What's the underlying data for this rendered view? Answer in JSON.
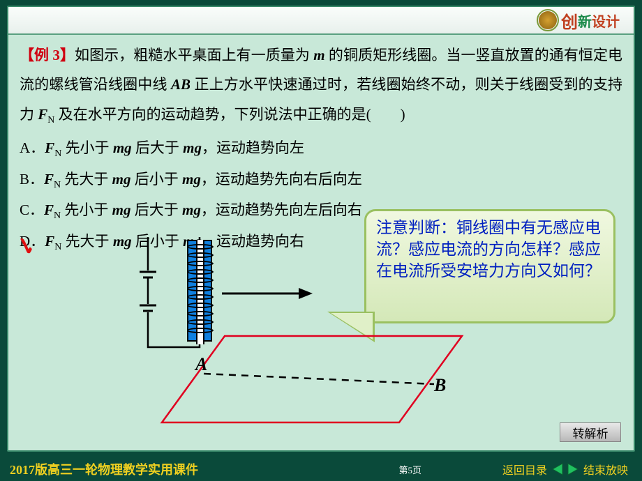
{
  "brand": {
    "chuang": "创",
    "xin": "新",
    "sheji": "设计"
  },
  "example_label": "【例 3】",
  "question": {
    "l1a": "如图示，粗糙水平桌面上有一质量为 ",
    "l1b": " 的铜质矩形线圈。当一竖直放置的通有恒定电流的螺线管沿线圈中线 ",
    "l1c": " 正上方水平快速通过时，若线圈始终不动，则关于线圈受到的支持力 ",
    "l1d": " 及在水平方向的运动趋势，下列说法中正确的是(　　)",
    "m": "m",
    "ab": "AB",
    "fn_f": "F",
    "fn_n": "N"
  },
  "options": {
    "A": {
      "letter": "A．",
      "t1": " 先小于 ",
      "t2": " 后大于 ",
      "t3": "，运动趋势向左"
    },
    "B": {
      "letter": "B．",
      "t1": " 先大于 ",
      "t2": " 后小于 ",
      "t3": "，运动趋势先向右后向左"
    },
    "C": {
      "letter": "C．",
      "t1": " 先小于 ",
      "t2": " 后大于 ",
      "t3": "，运动趋势先向左后向右"
    },
    "D": {
      "letter": "D．",
      "t1": " 先大于 ",
      "t2": " 后小于 ",
      "t3": "，运动趋势向右"
    },
    "fn_f": "F",
    "fn_n": "N",
    "mg": "mg"
  },
  "correct": "D",
  "callout_text": "注意判断：铜线圈中有无感应电流？感应电流的方向怎样？感应在电流所受安培力方向又如何？",
  "diagram": {
    "label_a": "A",
    "label_b": "B",
    "solenoid_color": "#1080e0",
    "coil_count": 11,
    "arrow_len": 120,
    "plane_color": "#e00020"
  },
  "buttons": {
    "jiexi": "转解析"
  },
  "footer": {
    "title": "2017版高三一轮物理教学实用课件",
    "page": "第5页",
    "back": "返回目录",
    "end": "结束放映"
  },
  "colors": {
    "frame_bg": "#c8e8d8",
    "outer_bg": "#0a4a3a",
    "accent_red": "#d00010",
    "callout_border": "#9ac060",
    "callout_text": "#0020c0",
    "footer_gold": "#f0d020"
  }
}
